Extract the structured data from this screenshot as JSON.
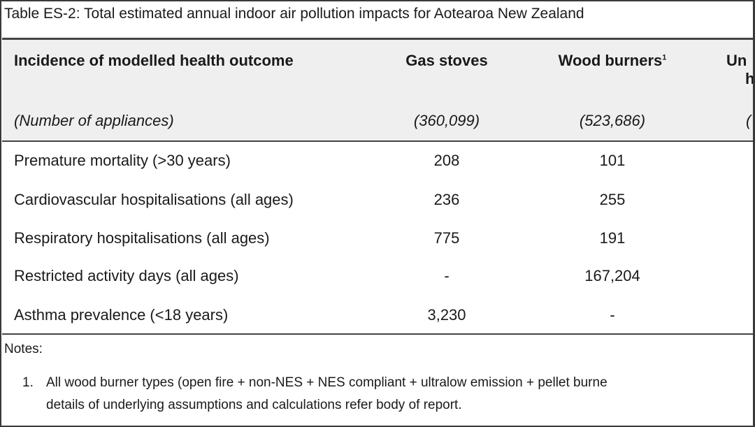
{
  "caption": "Table ES-2:  Total estimated annual indoor air pollution impacts for Aotearoa New Zealand",
  "table": {
    "headers": [
      "Incidence of modelled health outcome",
      "Gas stoves",
      "Wood burners",
      "Un"
    ],
    "header_footnote": "1",
    "header_c3_line2": "h",
    "counts": [
      "(Number of appliances)",
      "(360,099)",
      "(523,686)",
      "("
    ],
    "rows": [
      [
        "Premature mortality (>30 years)",
        "208",
        "101"
      ],
      [
        "Cardiovascular hospitalisations (all ages)",
        "236",
        "255"
      ],
      [
        "Respiratory hospitalisations (all ages)",
        "775",
        "191"
      ],
      [
        "Restricted activity days (all ages)",
        "-",
        "167,204"
      ],
      [
        "Asthma prevalence (<18 years)",
        "3,230",
        "-"
      ]
    ]
  },
  "notes": {
    "title": "Notes:",
    "number": "1.",
    "line1": "All wood burner types (open fire + non-NES + NES compliant + ultralow emission + pellet burne",
    "line2": "details of underlying assumptions and calculations refer body of report."
  }
}
